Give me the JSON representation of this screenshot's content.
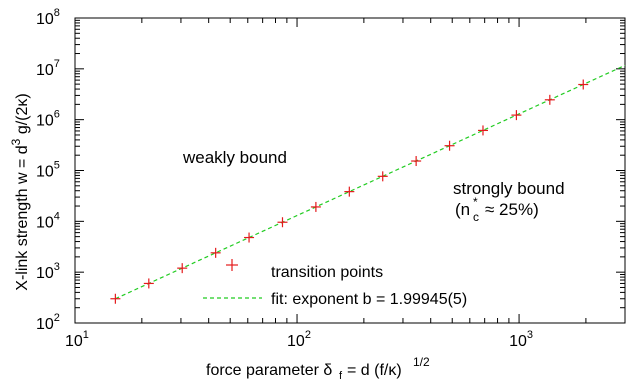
{
  "chart_data": {
    "type": "scatter",
    "x_scale": "log",
    "y_scale": "log",
    "xlim": [
      10,
      3000
    ],
    "ylim": [
      100,
      100000000
    ],
    "grid": false,
    "legend_position": "bottom-right",
    "xlabel": "force parameter δ_f = d (f/κ)^1/2",
    "ylabel": "X-link strength w = d^3 g/(2κ)",
    "x_ticks": [
      {
        "value": 10,
        "base": "10",
        "exp": "1"
      },
      {
        "value": 100,
        "base": "10",
        "exp": "2"
      },
      {
        "value": 1000,
        "base": "10",
        "exp": "3"
      }
    ],
    "y_ticks": [
      {
        "value": 100,
        "base": "10",
        "exp": "2"
      },
      {
        "value": 1000,
        "base": "10",
        "exp": "3"
      },
      {
        "value": 10000,
        "base": "10",
        "exp": "4"
      },
      {
        "value": 100000,
        "base": "10",
        "exp": "5"
      },
      {
        "value": 1000000,
        "base": "10",
        "exp": "6"
      },
      {
        "value": 10000000,
        "base": "10",
        "exp": "7"
      },
      {
        "value": 100000000,
        "base": "10",
        "exp": "8"
      }
    ],
    "series": [
      {
        "name": "transition points",
        "kind": "points",
        "marker": "plus",
        "color": "#e41a1c",
        "x": [
          15.2,
          21.5,
          30.4,
          43.0,
          60.8,
          86.0,
          121.6,
          172.0,
          243.2,
          343.9,
          486.4,
          687.9,
          972.8,
          1375.7,
          1945.6
        ],
        "y": [
          300,
          600,
          1200,
          2400,
          4800,
          9600,
          19200,
          38400,
          76800,
          153600,
          307200,
          614400,
          1228800,
          2457600,
          4915200
        ]
      },
      {
        "name": "fit: exponent b = 1.99945(5)",
        "kind": "line",
        "style": "dashed",
        "color": "#22cc22",
        "exponent": 1.99945,
        "x": [
          15.2,
          3000
        ],
        "y": [
          300,
          11700000
        ]
      }
    ],
    "annotations": {
      "weak": "weakly bound",
      "strong": "strongly bound",
      "strong_sub": "≈ 25%)"
    }
  }
}
